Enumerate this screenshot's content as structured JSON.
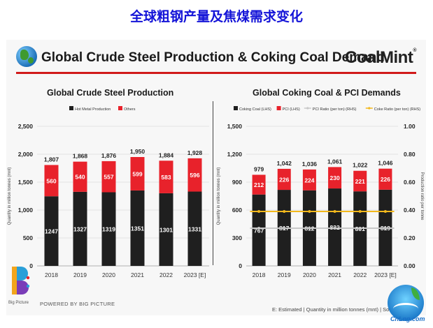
{
  "page_title": "全球粗钢产量及焦煤需求变化",
  "slide": {
    "title": "Global Crude Steel Production & Coking Coal Demand",
    "logo_text": "CoalMint",
    "logo_mark": "®",
    "footer_brand": "POWERED BY BIG PICTURE",
    "footer_logo_text": "Big Picture",
    "footnote": "E: Estimated | Quantity in million tonnes (mnt) | Sourc",
    "watermark": "CnLng.com"
  },
  "colors": {
    "black_bar": "#1f1f1f",
    "red_bar": "#e8222b",
    "grey_line": "#c8c8c8",
    "gold_line": "#f2b81c",
    "title_blue": "#1414d8"
  },
  "chart_data": [
    {
      "type": "bar",
      "stacked": true,
      "title": "Global Crude Steel Production",
      "categories": [
        "2018",
        "2019",
        "2020",
        "2021",
        "2022",
        "2023 [E]"
      ],
      "series": [
        {
          "name": "Hot Metal Production",
          "color": "#1f1f1f",
          "values": [
            1247,
            1327,
            1319,
            1351,
            1301,
            1331
          ]
        },
        {
          "name": "Others",
          "color": "#e8222b",
          "values": [
            560,
            540,
            557,
            599,
            583,
            596
          ]
        }
      ],
      "totals": [
        1807,
        1868,
        1876,
        1950,
        1884,
        1928
      ],
      "ylabel": "Quantity in million tonnes (mnt)",
      "ylim": [
        0,
        2500
      ],
      "yticks": [
        "0",
        "500",
        "1,000",
        "1,500",
        "2,000",
        "2,500"
      ],
      "ytick_values": [
        0,
        500,
        1000,
        1500,
        2000,
        2500
      ],
      "grid": true,
      "legend": "top-left"
    },
    {
      "type": "bar",
      "stacked": true,
      "title": "Global Coking Coal & PCI Demands",
      "categories": [
        "2018",
        "2019",
        "2020",
        "2021",
        "2022",
        "2023 [E]"
      ],
      "series": [
        {
          "name": "Coking Coal (LHS)",
          "color": "#1f1f1f",
          "values": [
            767,
            817,
            812,
            832,
            801,
            819
          ]
        },
        {
          "name": "PCI (LHS)",
          "color": "#e8222b",
          "values": [
            212,
            226,
            224,
            230,
            221,
            226
          ]
        }
      ],
      "totals": [
        979,
        1042,
        1036,
        1061,
        1022,
        1046
      ],
      "lines": [
        {
          "name": "PCI Ratio (per ton) (RHS)",
          "color": "#c8c8c8",
          "axis": "right",
          "values": [
            0.27,
            0.27,
            0.27,
            0.27,
            0.27,
            0.27
          ]
        },
        {
          "name": "Coke Ratio (per ton) (RHS)",
          "color": "#f2b81c",
          "axis": "right",
          "values": [
            0.39,
            0.39,
            0.39,
            0.39,
            0.39,
            0.39
          ]
        }
      ],
      "ylabel": "Quantity in million tonnes (mnt)",
      "ylabel_right": "Production ratio per tonne",
      "ylim": [
        0,
        1500
      ],
      "yticks": [
        "0",
        "300",
        "600",
        "900",
        "1,200",
        "1,500"
      ],
      "ytick_values": [
        0,
        300,
        600,
        900,
        1200,
        1500
      ],
      "ylim_right": [
        0,
        1.0
      ],
      "yticks_right": [
        "0.00",
        "0.20",
        "0.40",
        "0.60",
        "0.80",
        "1.00"
      ],
      "ytick_values_right": [
        0,
        0.2,
        0.4,
        0.6,
        0.8,
        1.0
      ],
      "grid": true,
      "legend": "top"
    }
  ]
}
